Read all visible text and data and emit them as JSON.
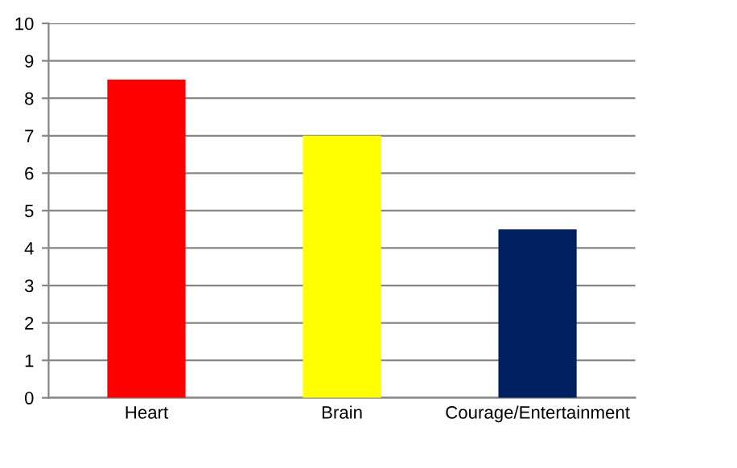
{
  "chart_data": {
    "type": "bar",
    "categories": [
      "Heart",
      "Brain",
      "Courage/Entertainment"
    ],
    "values": [
      8.5,
      7,
      4.5
    ],
    "colors": [
      "#ff0000",
      "#ffff00",
      "#002060"
    ],
    "ylim": [
      0,
      10
    ],
    "yticks": [
      0,
      1,
      2,
      3,
      4,
      5,
      6,
      7,
      8,
      9,
      10
    ],
    "grid": "y",
    "legend": false
  }
}
